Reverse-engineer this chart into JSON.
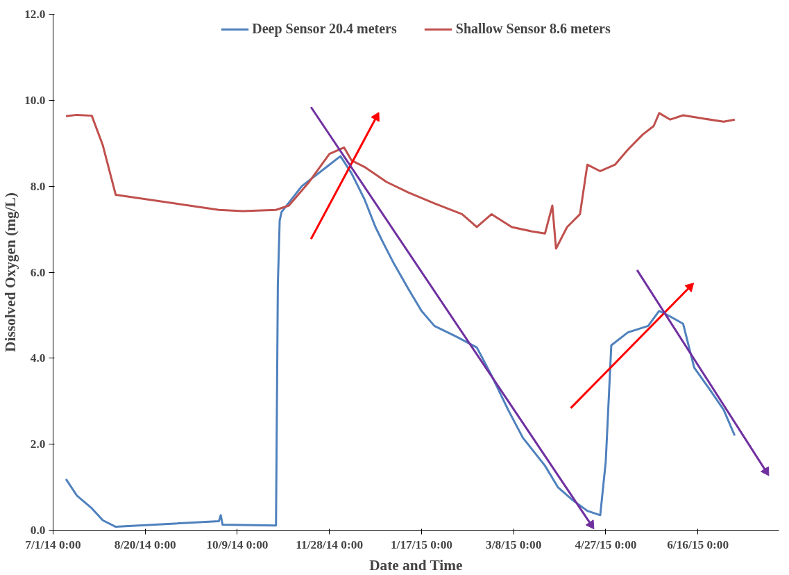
{
  "chart_data": {
    "type": "line",
    "xlabel": "Date and Time",
    "ylabel": "Dissolved Oxygen (mg/L)",
    "xlim": [
      "2014-07-01",
      "2015-07-30"
    ],
    "ylim": [
      0,
      12
    ],
    "xticks": [
      {
        "value": "2014-07-01",
        "label": "7/1/14 0:00"
      },
      {
        "value": "2014-08-20",
        "label": "8/20/14 0:00"
      },
      {
        "value": "2014-10-09",
        "label": "10/9/14 0:00"
      },
      {
        "value": "2014-11-28",
        "label": "11/28/14 0:00"
      },
      {
        "value": "2015-01-17",
        "label": "1/17/15 0:00"
      },
      {
        "value": "2015-03-08",
        "label": "3/8/15 0:00"
      },
      {
        "value": "2015-04-27",
        "label": "4/27/15 0:00"
      },
      {
        "value": "2015-06-16",
        "label": "6/16/15 0:00"
      }
    ],
    "yticks": [
      {
        "value": 0,
        "label": "0.0"
      },
      {
        "value": 2,
        "label": "2.0"
      },
      {
        "value": 4,
        "label": "4.0"
      },
      {
        "value": 6,
        "label": "6.0"
      },
      {
        "value": 8,
        "label": "8.0"
      },
      {
        "value": 10,
        "label": "10.0"
      },
      {
        "value": 12,
        "label": "12.0"
      }
    ],
    "grid": false,
    "legend": "top",
    "marker": "none",
    "line_style": "solid",
    "series": [
      {
        "name": "Deep Sensor 20.4 meters",
        "color": "#4f81bd",
        "x": [
          "2014-07-08",
          "2014-07-14",
          "2014-07-22",
          "2014-07-28",
          "2014-08-04",
          "2014-09-29",
          "2014-09-30",
          "2014-10-01",
          "2014-10-30",
          "2014-10-31",
          "2014-11-01",
          "2014-11-02",
          "2014-11-13",
          "2014-11-28",
          "2014-12-04",
          "2014-12-10",
          "2014-12-17",
          "2014-12-23",
          "2014-12-27",
          "2015-01-02",
          "2015-01-10",
          "2015-01-17",
          "2015-01-24",
          "2015-02-05",
          "2015-02-16",
          "2015-02-24",
          "2015-03-05",
          "2015-03-13",
          "2015-03-25",
          "2015-04-01",
          "2015-04-09",
          "2015-04-17",
          "2015-04-24",
          "2015-04-27",
          "2015-04-30",
          "2015-05-09",
          "2015-05-20",
          "2015-05-26",
          "2015-06-01",
          "2015-06-08",
          "2015-06-14",
          "2015-06-22",
          "2015-06-30",
          "2015-07-06"
        ],
        "values": [
          1.19,
          0.8,
          0.51,
          0.23,
          0.08,
          0.21,
          0.35,
          0.13,
          0.11,
          5.7,
          7.2,
          7.4,
          8.0,
          8.5,
          8.7,
          8.3,
          7.7,
          7.05,
          6.7,
          6.2,
          5.6,
          5.1,
          4.75,
          4.5,
          4.25,
          3.6,
          2.8,
          2.15,
          1.5,
          1.0,
          0.7,
          0.45,
          0.35,
          1.6,
          4.3,
          4.6,
          4.75,
          5.1,
          4.97,
          4.8,
          3.78,
          3.3,
          2.8,
          2.2
        ]
      },
      {
        "name": "Shallow Sensor 8.6 meters",
        "color": "#c0504d",
        "x": [
          "2014-07-08",
          "2014-07-14",
          "2014-07-22",
          "2014-07-28",
          "2014-08-04",
          "2014-09-29",
          "2014-10-12",
          "2014-10-30",
          "2014-11-06",
          "2014-11-17",
          "2014-11-28",
          "2014-12-06",
          "2014-12-10",
          "2014-12-17",
          "2014-12-29",
          "2015-01-10",
          "2015-01-24",
          "2015-02-08",
          "2015-02-16",
          "2015-02-24",
          "2015-03-07",
          "2015-03-18",
          "2015-03-25",
          "2015-03-29",
          "2015-03-31",
          "2015-04-06",
          "2015-04-13",
          "2015-04-17",
          "2015-04-24",
          "2015-05-02",
          "2015-05-09",
          "2015-05-17",
          "2015-05-23",
          "2015-05-26",
          "2015-06-01",
          "2015-06-08",
          "2015-06-15",
          "2015-06-30",
          "2015-07-06"
        ],
        "values": [
          9.63,
          9.66,
          9.64,
          8.95,
          7.8,
          7.45,
          7.42,
          7.45,
          7.55,
          8.1,
          8.75,
          8.9,
          8.6,
          8.45,
          8.1,
          7.85,
          7.6,
          7.35,
          7.05,
          7.35,
          7.05,
          6.95,
          6.9,
          7.55,
          6.55,
          7.05,
          7.35,
          8.5,
          8.35,
          8.5,
          8.85,
          9.2,
          9.4,
          9.7,
          9.55,
          9.65,
          9.6,
          9.5,
          9.55
        ]
      },
      {
        "color": "#ff0000",
        "marker": "triangle",
        "x": [
          "2014-11-18",
          "2014-12-23T12:00"
        ],
        "values": [
          6.77,
          9.61
        ]
      },
      {
        "color": "#7030a0",
        "marker": "triangle",
        "x": [
          "2014-11-18",
          "2015-04-19"
        ],
        "values": [
          9.84,
          0.13
        ]
      },
      {
        "color": "#ff0000",
        "marker": "triangle",
        "x": [
          "2015-04-08",
          "2015-06-11T17:00"
        ],
        "values": [
          2.84,
          5.66
        ]
      },
      {
        "color": "#7030a0",
        "marker": "triangle",
        "x": [
          "2015-05-14",
          "2015-07-23"
        ],
        "values": [
          6.05,
          1.37
        ]
      }
    ]
  }
}
